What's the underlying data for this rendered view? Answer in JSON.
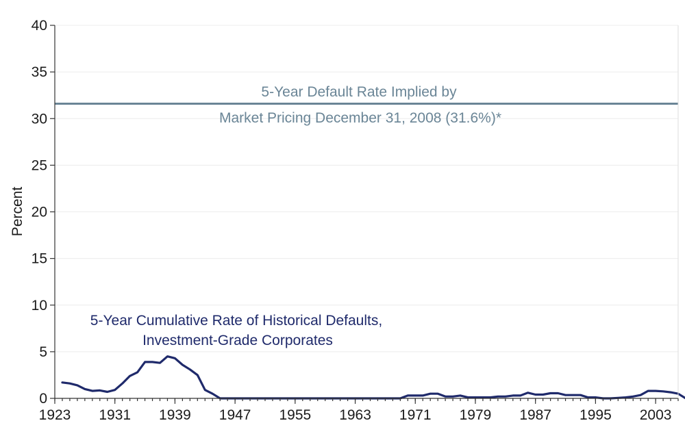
{
  "chart_data": {
    "type": "line",
    "title": "",
    "xlabel": "",
    "ylabel": "Percent",
    "xlim": [
      1923,
      2006
    ],
    "ylim": [
      0,
      40
    ],
    "grid": true,
    "x_ticks": [
      "1923",
      "1931",
      "1939",
      "1947",
      "1955",
      "1963",
      "1971",
      "1979",
      "1987",
      "1995",
      "2003"
    ],
    "y_ticks": [
      "0",
      "5",
      "10",
      "15",
      "20",
      "25",
      "30",
      "35",
      "40"
    ],
    "reference_line": {
      "value": 31.6,
      "label_line1": "5-Year Default Rate Implied by",
      "label_line2": "Market Pricing December 31, 2008 (31.6%)*",
      "color": "#6a8596"
    },
    "series": [
      {
        "name_line1": "5-Year Cumulative Rate of Historical Defaults,",
        "name_line2": "Investment-Grade Corporates",
        "color": "#1f2a6b",
        "points": [
          [
            1924,
            1.7
          ],
          [
            1925,
            1.6
          ],
          [
            1926,
            1.4
          ],
          [
            1927,
            1.0
          ],
          [
            1928,
            0.8
          ],
          [
            1929,
            0.85
          ],
          [
            1930,
            0.7
          ],
          [
            1931,
            0.9
          ],
          [
            1932,
            1.6
          ],
          [
            1933,
            2.4
          ],
          [
            1934,
            2.8
          ],
          [
            1935,
            3.9
          ],
          [
            1936,
            3.9
          ],
          [
            1937,
            3.8
          ],
          [
            1938,
            4.5
          ],
          [
            1939,
            4.3
          ],
          [
            1940,
            3.6
          ],
          [
            1941,
            3.1
          ],
          [
            1942,
            2.5
          ],
          [
            1943,
            0.9
          ],
          [
            1944,
            0.5
          ],
          [
            1945,
            0.0
          ],
          [
            1946,
            0.0
          ],
          [
            1947,
            0.0
          ],
          [
            1948,
            0.0
          ],
          [
            1950,
            0.0
          ],
          [
            1955,
            0.0
          ],
          [
            1960,
            0.0
          ],
          [
            1965,
            0.0
          ],
          [
            1969,
            0.0
          ],
          [
            1970,
            0.3
          ],
          [
            1971,
            0.3
          ],
          [
            1972,
            0.3
          ],
          [
            1973,
            0.5
          ],
          [
            1974,
            0.5
          ],
          [
            1975,
            0.2
          ],
          [
            1976,
            0.2
          ],
          [
            1977,
            0.3
          ],
          [
            1978,
            0.1
          ],
          [
            1979,
            0.1
          ],
          [
            1980,
            0.1
          ],
          [
            1981,
            0.1
          ],
          [
            1982,
            0.2
          ],
          [
            1983,
            0.2
          ],
          [
            1984,
            0.3
          ],
          [
            1985,
            0.3
          ],
          [
            1986,
            0.6
          ],
          [
            1987,
            0.4
          ],
          [
            1988,
            0.4
          ],
          [
            1989,
            0.55
          ],
          [
            1990,
            0.55
          ],
          [
            1991,
            0.35
          ],
          [
            1992,
            0.35
          ],
          [
            1993,
            0.35
          ],
          [
            1994,
            0.1
          ],
          [
            1995,
            0.1
          ],
          [
            1996,
            0.0
          ],
          [
            1997,
            0.0
          ],
          [
            1998,
            0.05
          ],
          [
            1999,
            0.1
          ],
          [
            2000,
            0.2
          ],
          [
            2001,
            0.35
          ],
          [
            2002,
            0.8
          ],
          [
            2003,
            0.8
          ],
          [
            2004,
            0.75
          ],
          [
            2005,
            0.65
          ],
          [
            2006,
            0.5
          ],
          [
            2007,
            0.0
          ]
        ]
      }
    ]
  }
}
